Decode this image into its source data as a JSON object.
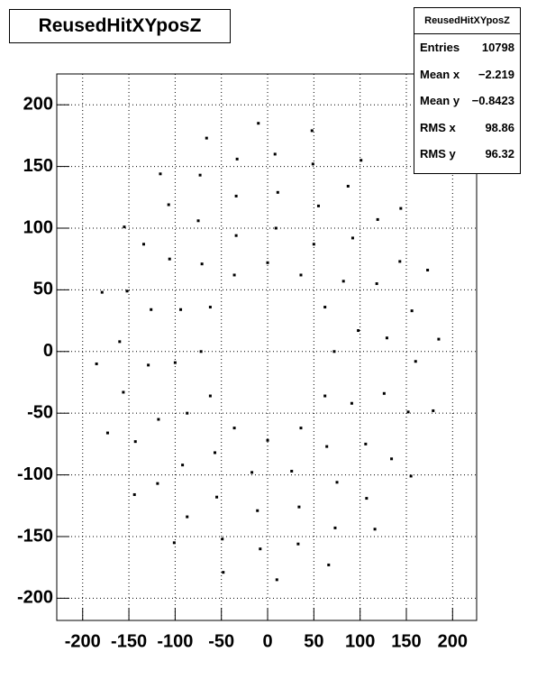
{
  "chart_data": {
    "type": "scatter",
    "title": "ReusedHitXYposZ",
    "x": [
      72,
      62,
      36,
      0,
      -36,
      -62,
      -72,
      -62,
      -36,
      0,
      36,
      62,
      98,
      82,
      50,
      9,
      -34,
      -71,
      -94,
      -100,
      -87,
      -57,
      -17,
      26,
      64,
      91,
      129,
      118,
      92,
      55,
      11,
      -34,
      -75,
      -106,
      -126,
      -129,
      -118,
      -92,
      -55,
      -11,
      34,
      75,
      106,
      126,
      156,
      143,
      119,
      87,
      49,
      8,
      -33,
      -73,
      -107,
      -134,
      -152,
      -160,
      -156,
      -143,
      -119,
      -87,
      -49,
      -8,
      33,
      73,
      107,
      134,
      152,
      160,
      185,
      173,
      144,
      101,
      48,
      -10,
      -66,
      -116,
      -155,
      -179,
      -185,
      -173,
      -144,
      -101,
      -48,
      10,
      66,
      116,
      155,
      179
    ],
    "y": [
      0,
      36,
      62,
      72,
      62,
      36,
      0,
      -36,
      -62,
      -72,
      -62,
      -36,
      17,
      57,
      87,
      100,
      94,
      71,
      34,
      -9,
      -50,
      -82,
      -98,
      -97,
      -77,
      -42,
      11,
      55,
      92,
      118,
      129,
      126,
      106,
      75,
      34,
      -11,
      -55,
      -92,
      -118,
      -129,
      -126,
      -106,
      -75,
      -34,
      33,
      73,
      107,
      134,
      152,
      160,
      156,
      143,
      119,
      87,
      49,
      8,
      -33,
      -73,
      -107,
      -134,
      -152,
      -160,
      -156,
      -143,
      -119,
      -87,
      -49,
      -8,
      10,
      66,
      116,
      155,
      179,
      185,
      173,
      144,
      101,
      48,
      -10,
      -66,
      -116,
      -155,
      -179,
      -185,
      -173,
      -144,
      -101,
      -48
    ],
    "color": "#000000",
    "xlim": [
      -228,
      226
    ],
    "ylim": [
      -218,
      225
    ],
    "xticks": [
      -200,
      -150,
      -100,
      -50,
      0,
      50,
      100,
      150,
      200
    ],
    "yticks": [
      -200,
      -150,
      -100,
      -50,
      0,
      50,
      100,
      150,
      200
    ],
    "grid": true,
    "stats": {
      "title": "ReusedHitXYposZ",
      "rows": [
        [
          "Entries",
          "10798"
        ],
        [
          "Mean x",
          "−2.219"
        ],
        [
          "Mean y",
          "−0.8423"
        ],
        [
          "RMS x",
          "98.86"
        ],
        [
          "RMS y",
          "96.32"
        ]
      ]
    }
  }
}
